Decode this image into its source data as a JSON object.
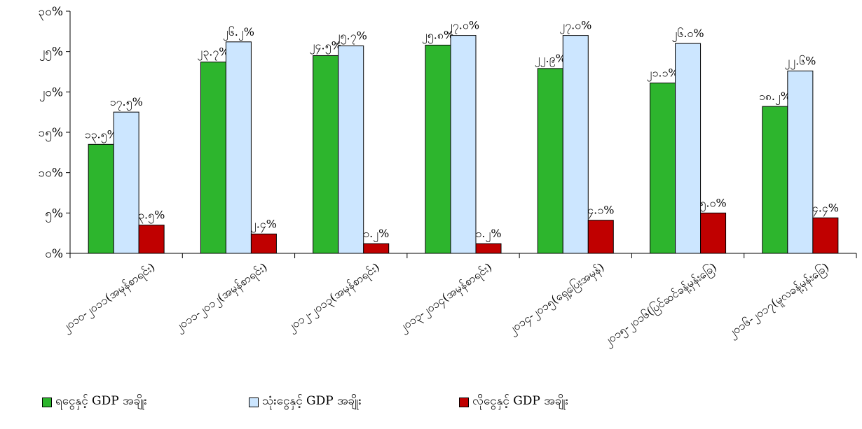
{
  "chart_data": {
    "type": "bar",
    "categories": [
      "၂၀၁၀-၂၀၁၁(အမှန်စာရင်း)",
      "၂၀၁၁-၂၀၁၂(အမှန်စာရင်း)",
      "၂၀၁၂-၂၀၁၃(အမှန်စာရင်း)",
      "၂၀၁၃-၂၀၁၄(အမှန်စာရင်း)",
      "၂၀၁၄-၂၀၁၅(ရှေ့ပြေးအမှန်)",
      "၂၀၁၅-၂၀၁၆(ပြင်ဆင်ခန့်မှန်းခြေ)",
      "၂၀၁၆-၂၀၁၇(မူလခန့်မှန်းခြေ)"
    ],
    "series": [
      {
        "name": "ရငွေနှင့် GDP အချိုး",
        "color": "#2db52d",
        "values": [
          13.5,
          23.7,
          24.5,
          25.8,
          22.9,
          21.1,
          18.2
        ],
        "labels": [
          "၁၃.၅%",
          "၂၃.၇%",
          "၂၄.၅%",
          "၂၅.၈%",
          "၂၂.၉%",
          "၂၁.၁%",
          "၁၈.၂%"
        ]
      },
      {
        "name": "သုံးငွေနှင့် GDP အချိုး",
        "color": "#cce6ff",
        "values": [
          17.5,
          26.2,
          25.7,
          27.0,
          27.0,
          26.0,
          22.6
        ],
        "labels": [
          "၁၇.၅%",
          "၂၆.၂%",
          "၂၅.၇%",
          "၂၇.၀%",
          "၂၇.၀%",
          "၂၆.၀%",
          "၂၂.၆%"
        ]
      },
      {
        "name": "လိုငွေနှင့် GDP အချိုး",
        "color": "#c00000",
        "values": [
          3.5,
          2.4,
          1.2,
          1.2,
          4.1,
          5.0,
          4.4
        ],
        "labels": [
          "၃.၅%",
          "၂.၄%",
          "၁.၂%",
          "၁.၂%",
          "၄.၁%",
          "၅.၀%",
          "၄.၄%"
        ]
      }
    ],
    "ylim": [
      0,
      30
    ],
    "yticks": [
      0,
      5,
      10,
      15,
      20,
      25,
      30
    ],
    "ytick_labels": [
      "၀%",
      "၅%",
      "၁၀%",
      "၁၅%",
      "၂၀%",
      "၂၅%",
      "၃၀%"
    ],
    "grid": false,
    "legend_position": "bottom",
    "title": "",
    "xlabel": "",
    "ylabel": ""
  }
}
